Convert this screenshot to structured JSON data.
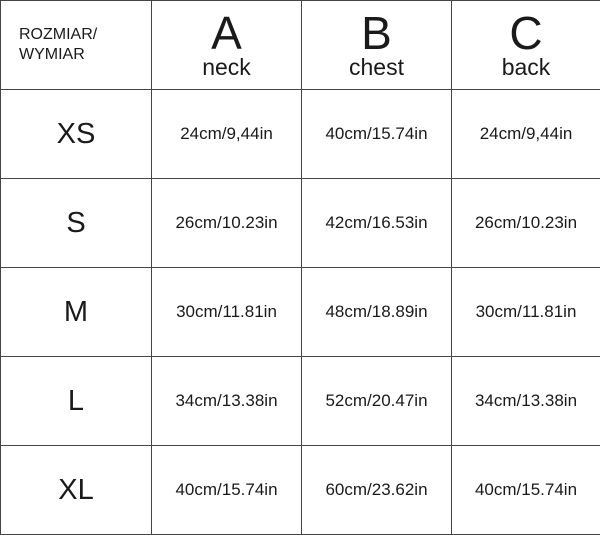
{
  "header": {
    "corner": [
      "ROZMIAR/",
      "WYMIAR"
    ],
    "columns": [
      {
        "letter": "A",
        "label": "neck"
      },
      {
        "letter": "B",
        "label": "chest"
      },
      {
        "letter": "C",
        "label": "back"
      }
    ]
  },
  "rows": [
    {
      "size": "XS",
      "values": [
        "24cm/9,44in",
        "40cm/15.74in",
        "24cm/9,44in"
      ]
    },
    {
      "size": "S",
      "values": [
        "26cm/10.23in",
        "42cm/16.53in",
        "26cm/10.23in"
      ]
    },
    {
      "size": "M",
      "values": [
        "30cm/11.81in",
        "48cm/18.89in",
        "30cm/11.81in"
      ]
    },
    {
      "size": "L",
      "values": [
        "34cm/13.38in",
        "52cm/20.47in",
        "34cm/13.38in"
      ]
    },
    {
      "size": "XL",
      "values": [
        "40cm/15.74in",
        "60cm/23.62in",
        "40cm/15.74in"
      ]
    }
  ]
}
